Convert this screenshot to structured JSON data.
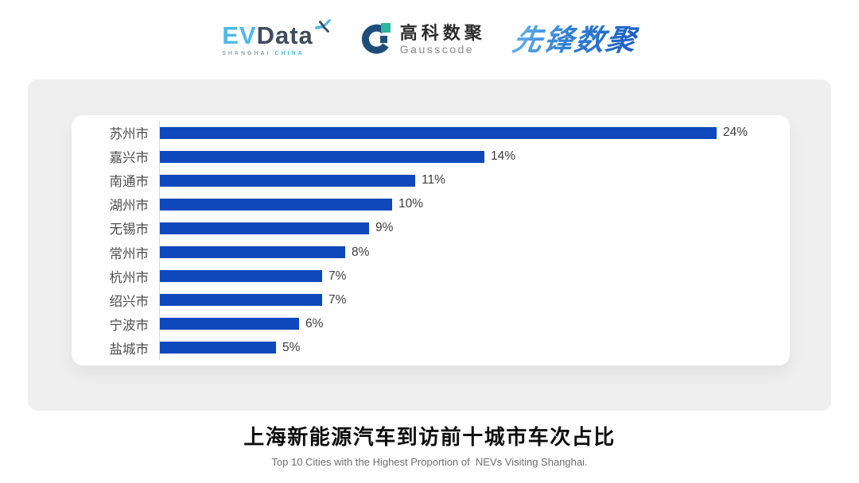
{
  "header": {
    "evdata": {
      "ev": "EV",
      "data": "Data",
      "sub_left": "SHANGHAI",
      "sub_right": "CHINA"
    },
    "gausscode": {
      "cn": "高科数聚",
      "en": "Gausscode"
    },
    "xianfeng": "先锋数聚"
  },
  "chart_data": {
    "type": "bar",
    "orientation": "horizontal",
    "categories": [
      "苏州市",
      "嘉兴市",
      "南通市",
      "湖州市",
      "无锡市",
      "常州市",
      "杭州市",
      "绍兴市",
      "宁波市",
      "盐城市"
    ],
    "values": [
      24,
      14,
      11,
      10,
      9,
      8,
      7,
      7,
      6,
      5
    ],
    "value_labels": [
      "24%",
      "14%",
      "11%",
      "10%",
      "9%",
      "8%",
      "7%",
      "7%",
      "6%",
      "5%"
    ],
    "title": "上海新能源汽车到访前十城市车次占比",
    "subtitle": "Top 10 Cities with the Highest Proportion of  NEVs Visiting Shanghai.",
    "xlabel": "",
    "ylabel": "",
    "xlim": [
      0,
      24
    ],
    "bar_color": "#0f48bb",
    "axis_line_color": "#d9d9d9",
    "grid": false,
    "legend": false
  }
}
